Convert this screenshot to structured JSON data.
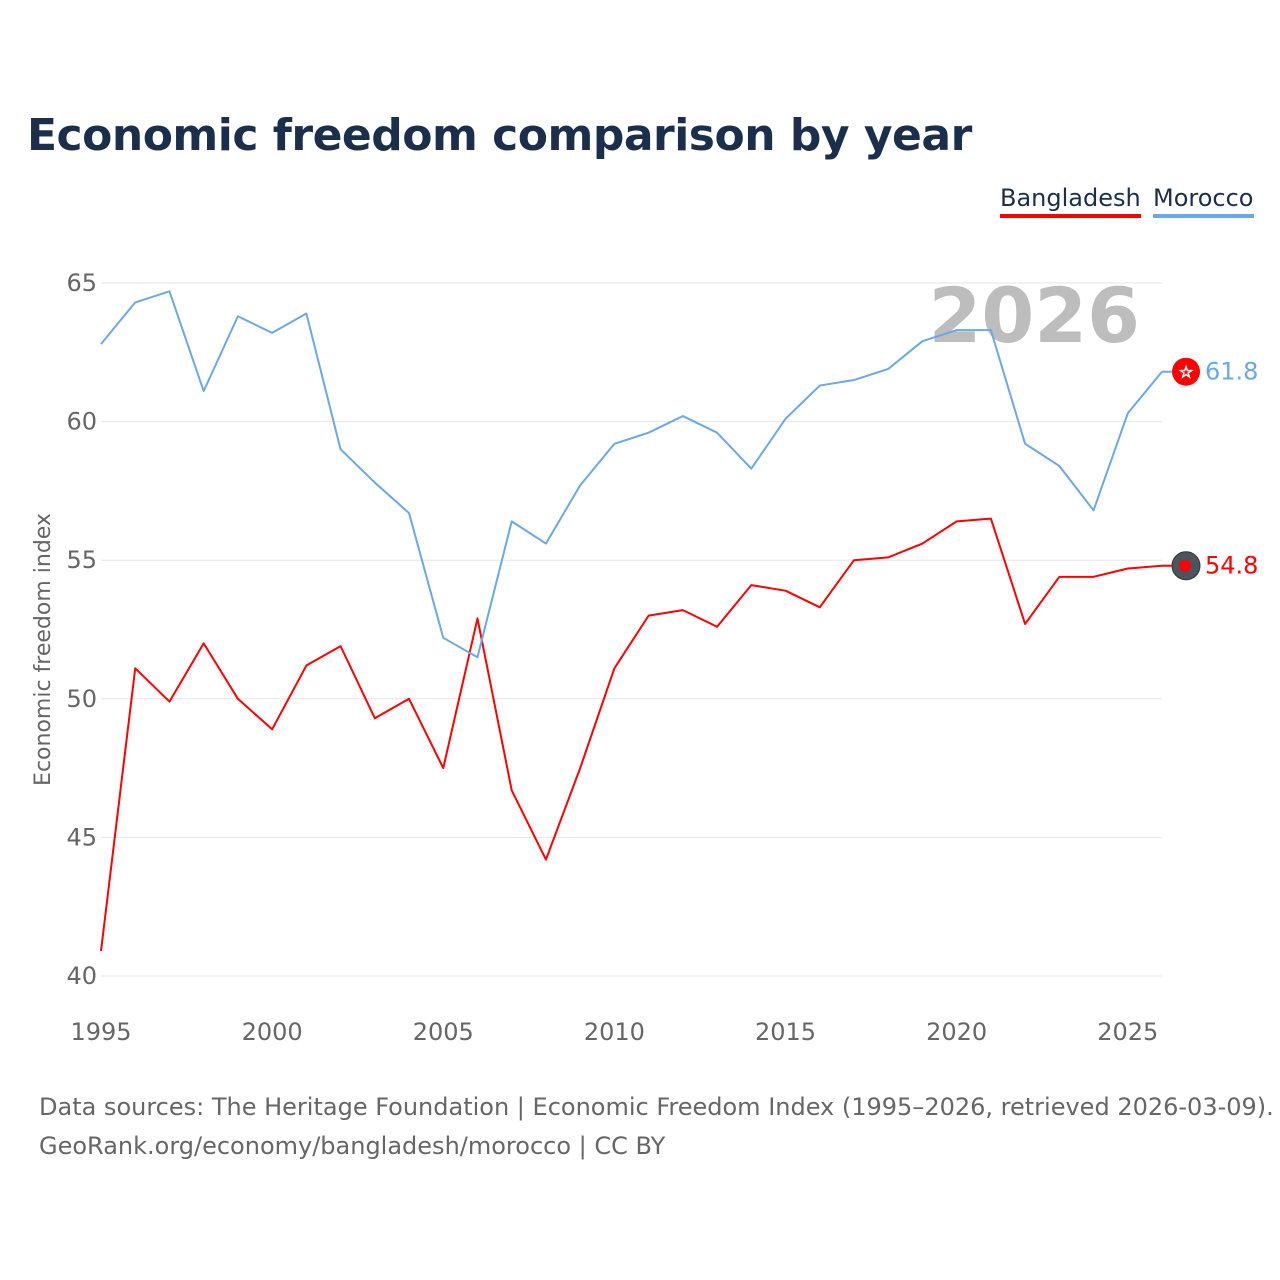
{
  "chart_data": {
    "type": "line",
    "title": "Economic freedom comparison by year",
    "xlabel": "",
    "ylabel": "Economic freedom index",
    "xlim": [
      1995,
      2026
    ],
    "ylim": [
      40,
      65
    ],
    "yticks": [
      40,
      45,
      50,
      55,
      60,
      65
    ],
    "xticks": [
      1995,
      2000,
      2005,
      2010,
      2015,
      2020,
      2025
    ],
    "grid": true,
    "legend_position": "top-right",
    "year_watermark": "2026",
    "x": [
      1995,
      1996,
      1997,
      1998,
      1999,
      2000,
      2001,
      2002,
      2003,
      2004,
      2005,
      2006,
      2007,
      2008,
      2009,
      2010,
      2011,
      2012,
      2013,
      2014,
      2015,
      2016,
      2017,
      2018,
      2019,
      2020,
      2021,
      2022,
      2023,
      2024,
      2025,
      2026
    ],
    "series": [
      {
        "name": "Bangladesh",
        "color": "#ff0000",
        "end_label": "54.8",
        "values": [
          40.9,
          51.1,
          49.9,
          52.0,
          50.0,
          48.9,
          51.2,
          51.9,
          49.3,
          50.0,
          47.5,
          52.9,
          46.7,
          44.2,
          47.5,
          51.1,
          53.0,
          53.2,
          52.6,
          54.1,
          53.9,
          53.3,
          55.0,
          55.1,
          55.6,
          56.4,
          56.5,
          52.7,
          54.4,
          54.4,
          54.7,
          54.8
        ]
      },
      {
        "name": "Morocco",
        "color": "#6aa8e8",
        "end_label": "61.8",
        "values": [
          62.8,
          64.3,
          64.7,
          61.1,
          63.8,
          63.2,
          63.9,
          59.0,
          57.8,
          56.7,
          52.2,
          51.5,
          56.4,
          55.6,
          57.7,
          59.2,
          59.6,
          60.2,
          59.6,
          58.3,
          60.1,
          61.3,
          61.5,
          61.9,
          62.9,
          63.3,
          63.3,
          59.2,
          58.4,
          56.8,
          60.3,
          61.8
        ]
      }
    ]
  },
  "source": {
    "line1": "Data sources: The Heritage Foundation | Economic Freedom Index (1995–2026, retrieved 2026-03-09).",
    "line2": "GeoRank.org/economy/bangladesh/morocco | CC BY"
  }
}
